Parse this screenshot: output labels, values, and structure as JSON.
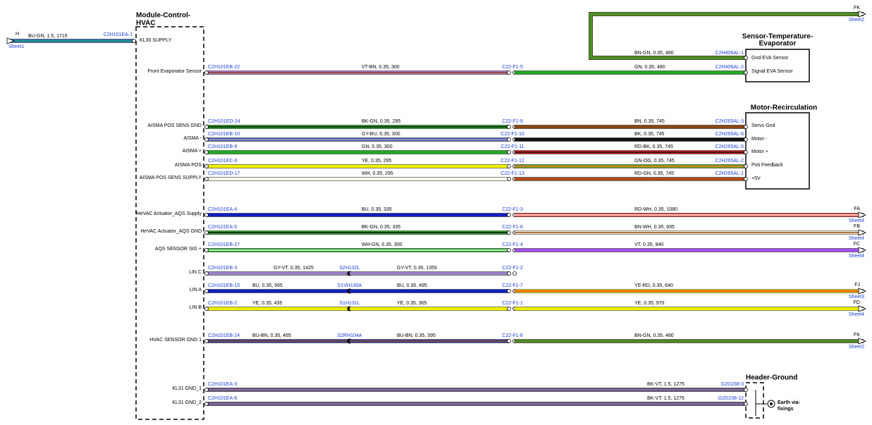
{
  "module": {
    "title": [
      "Module-Control-",
      "HVAC"
    ]
  },
  "supply": {
    "ref": "H",
    "sheet": "Sheet1",
    "wire": "BU-GN, 1.5, 1715",
    "connector": "C2H101EA-1",
    "pin": "KL30 SUPPLY"
  },
  "top": {
    "ref": "FK",
    "sheet": "Sheet2",
    "wire": "BN-GN, 0.35, 480",
    "connector": "C2H406AL-1"
  },
  "sensor": {
    "title": [
      "Sensor-Temperature-",
      "Evaporator"
    ],
    "pins": [
      "Gnd EVA Sensor",
      "Signal EVA Sensor"
    ]
  },
  "motor": {
    "title": "Motor-Recirculation",
    "pins": [
      "Servo Gnd",
      "Motor -",
      "Motor +",
      "Poti Feedback",
      "+5V"
    ]
  },
  "ground": {
    "title": "Header-Ground",
    "note": [
      "Earth via-",
      "fixings"
    ]
  },
  "rows": [
    {
      "pin": "Front Evaporator Sensor",
      "connector": "C2H101EB-22",
      "segments": [
        {
          "wire": "VT-BN, 0.35, 300",
          "end": "C22-F1-5"
        },
        {
          "wire": "GN, 0.35, 480",
          "end": "C2H406AL-2"
        }
      ]
    },
    {
      "pin": "AISMA POS SENS GND",
      "connector": "C2H101ED-24",
      "segments": [
        {
          "wire": "BK-GN, 0.35, 295",
          "end": "C22-F1-9"
        },
        {
          "wire": "BN, 0.35, 745",
          "end": "C2H265AL-3"
        }
      ]
    },
    {
      "pin": "AISMA -",
      "connector": "C2H101EB-10",
      "segments": [
        {
          "wire": "GY-BU, 0.35, 300",
          "end": "C22-F1-10"
        },
        {
          "wire": "BK, 0.35, 745",
          "end": "C2H265AL-6"
        }
      ]
    },
    {
      "pin": "AISMA +",
      "connector": "C2H101EB-9",
      "segments": [
        {
          "wire": "GN, 0.35, 300",
          "end": "C22-F1-11"
        },
        {
          "wire": "RD-BK, 0.35, 745",
          "end": "C2H265AL-5"
        }
      ]
    },
    {
      "pin": "AISMA POS",
      "connector": "C2H101EC-6",
      "segments": [
        {
          "wire": "YE, 0.35, 295",
          "end": "C22-F1-12"
        },
        {
          "wire": "GN-OG, 0.35, 745",
          "end": "C2H265AL-2"
        }
      ]
    },
    {
      "pin": "AISMA POS SENS SUPPLY",
      "connector": "C2H101ED-17",
      "segments": [
        {
          "wire": "WH, 0.35, 295",
          "end": "C22-F1-13"
        },
        {
          "wire": "RD-GN, 0.35, 745",
          "end": "C2H265AL-1"
        }
      ]
    },
    {
      "pin": "HeVAC Actuator_AQS Supply",
      "connector": "C2H101EA-4",
      "segments": [
        {
          "wire": "BU, 0.35, 335",
          "end": "C22-F1-3"
        },
        {
          "wire": "RD-WH, 0.35, 1080"
        }
      ],
      "offsheet": {
        "ref": "FA",
        "sheet": "Sheet4"
      }
    },
    {
      "pin": "HeVAC Actuator_AQS GND",
      "connector": "C2H101EA-5",
      "segments": [
        {
          "wire": "BK-GN, 0.35, 335",
          "end": "C22-F1-8"
        },
        {
          "wire": "BN-WH, 0.35, 935"
        }
      ],
      "offsheet": {
        "ref": "FB",
        "sheet": "Sheet4"
      }
    },
    {
      "pin": "AQS SENSOR SIG +",
      "connector": "C2H101EB-27",
      "segments": [
        {
          "wire": "WH-GN, 0.35, 300",
          "end": "C22-F1-4"
        },
        {
          "wire": "VT, 0.35, 840"
        }
      ],
      "offsheet": {
        "ref": "FC",
        "sheet": "Sheet4"
      }
    },
    {
      "pin": "LIN C",
      "connector": "C2H101EB-3",
      "segments": [
        {
          "wire": "GY-VT, 0.35, 1425",
          "end": "S2H132L"
        },
        {
          "wire": "GY-VT, 0.35, 1355",
          "end": "C22-F1-2"
        }
      ]
    },
    {
      "pin": "LIN A",
      "connector": "C2H101EB-15",
      "segments": [
        {
          "wire": "BU, 0.35, 565",
          "end": "S1VH130A"
        },
        {
          "wire": "BU, 0.35, 495",
          "end": "C22-F1-7"
        },
        {
          "wire": "YE-RD, 0.35, 640"
        }
      ],
      "offsheet": {
        "ref": "FJ",
        "sheet": "Sheet3"
      }
    },
    {
      "pin": "LIN B",
      "connector": "C2H101EB-2",
      "segments": [
        {
          "wire": "YE, 0.35, 435",
          "end": "S1H131L"
        },
        {
          "wire": "YE, 0.35, 365",
          "end": "C22-F1-1"
        },
        {
          "wire": "YE, 0.35, 970"
        }
      ],
      "offsheet": {
        "ref": "FD",
        "sheet": "Sheet4"
      }
    },
    {
      "pin": "HVAC SENSOR GND 1",
      "connector": "C2H101EB-24",
      "segments": [
        {
          "wire": "BU-BN, 0.35, 465",
          "end": "S2RH104A"
        },
        {
          "wire": "BU-BN, 0.35, 395",
          "end": "C22-F1-6"
        },
        {
          "wire": "BN-GN, 0.35, 480"
        }
      ],
      "offsheet": {
        "ref": "FK",
        "sheet": "Sheet2"
      }
    },
    {
      "pin": "KL31 GND_1",
      "connector": "C2H101EA-3",
      "segments": [
        {
          "wire": "BK-VT, 1.5, 1275",
          "end": "G2D238-3"
        }
      ]
    },
    {
      "pin": "KL31 GND_2",
      "connector": "C2H101EA-6",
      "segments": [
        {
          "wire": "BK-VT, 1.5, 1275",
          "end": "G2D238-12"
        }
      ]
    }
  ]
}
